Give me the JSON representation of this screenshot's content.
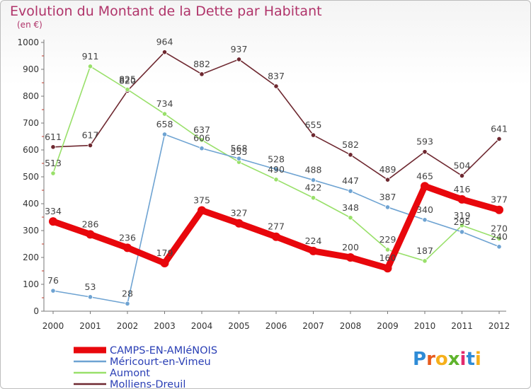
{
  "chart_data": {
    "type": "line",
    "title": "Evolution du Montant de la Dette par Habitant",
    "subtitle": "(en €)",
    "xlabel": "",
    "ylabel": "",
    "x": [
      "2000",
      "2001",
      "2002",
      "2003",
      "2004",
      "2005",
      "2006",
      "2007",
      "2008",
      "2009",
      "2010",
      "2011",
      "2012"
    ],
    "ylim": [
      0,
      1000
    ],
    "yticks": [
      0,
      100,
      200,
      300,
      400,
      500,
      600,
      700,
      800,
      900,
      1000
    ],
    "grid": false,
    "legend_position": "bottom-left",
    "series": [
      {
        "name": "CAMPS-EN-AMIéNOIS",
        "color": "#e8070c",
        "width": "thick",
        "values": [
          334,
          286,
          236,
          179,
          375,
          327,
          277,
          224,
          200,
          160,
          465,
          416,
          377
        ]
      },
      {
        "name": "Méricourt-en-Vimeu",
        "color": "#6ea3d2",
        "width": "thin",
        "values": [
          76,
          53,
          28,
          658,
          606,
          568,
          528,
          488,
          447,
          387,
          340,
          295,
          240
        ]
      },
      {
        "name": "Aumont",
        "color": "#99e06a",
        "width": "thin",
        "values": [
          513,
          911,
          825,
          734,
          637,
          555,
          490,
          422,
          348,
          229,
          187,
          319,
          270
        ]
      },
      {
        "name": "Molliens-Dreuil",
        "color": "#6e2830",
        "width": "thin",
        "values": [
          611,
          617,
          820,
          964,
          882,
          937,
          837,
          655,
          582,
          489,
          593,
          504,
          641
        ]
      }
    ]
  },
  "logo": {
    "letters": [
      "P",
      "r",
      "o",
      "x",
      "i",
      "t",
      "i"
    ],
    "colors": [
      "#2e8bd6",
      "#e65b1e",
      "#f6b01b",
      "#5fb42c",
      "#e22a6d",
      "#2e8bd6",
      "#f6b01b"
    ]
  }
}
